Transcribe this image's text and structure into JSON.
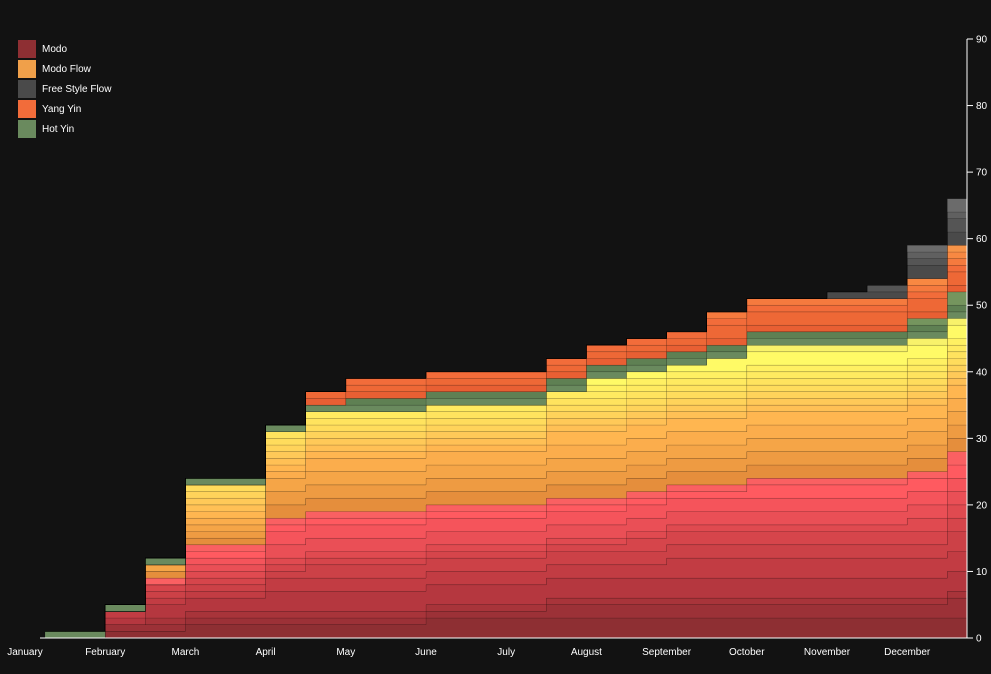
{
  "chart_data": {
    "type": "area",
    "stacked": true,
    "step": true,
    "title": "",
    "xlabel": "",
    "ylabel": "",
    "ylim": [
      0,
      90
    ],
    "y_ticks": [
      0,
      10,
      20,
      30,
      40,
      50,
      60,
      70,
      80,
      90
    ],
    "y_axis_position": "right",
    "grid": false,
    "legend_position": "top-left",
    "x_tick_labels": [
      "January",
      "February",
      "March",
      "April",
      "May",
      "June",
      "July",
      "August",
      "September",
      "October",
      "November",
      "December"
    ],
    "x": [
      0,
      0.5,
      1,
      1.5,
      2,
      2.5,
      3,
      3.5,
      4,
      4.5,
      5,
      5.5,
      6,
      6.5,
      7,
      7.5,
      8,
      8.5,
      9,
      9.5,
      10,
      10.5,
      11,
      11.5
    ],
    "legend": [
      {
        "name": "Modo",
        "color": "#8e2f33"
      },
      {
        "name": "Modo Flow",
        "color": "#f0a04a"
      },
      {
        "name": "Free Style Flow",
        "color": "#4a4a4a"
      },
      {
        "name": "Yang Yin",
        "color": "#f26c3a"
      },
      {
        "name": "Hot Yin",
        "color": "#6a8a5e"
      }
    ],
    "series": [
      {
        "values": [
          0,
          0,
          1,
          1,
          2,
          2,
          2,
          2,
          2,
          2,
          3,
          3,
          3,
          3,
          3,
          3,
          3,
          3,
          3,
          3,
          3,
          3,
          3,
          3
        ],
        "color": "#8e2f33"
      },
      {
        "values": [
          0,
          0,
          1,
          1,
          1,
          1,
          1,
          1,
          1,
          1,
          1,
          1,
          1,
          2,
          2,
          2,
          2,
          2,
          2,
          2,
          2,
          2,
          2,
          3
        ],
        "color": "#9c3137"
      },
      {
        "values": [
          0,
          0,
          0,
          1,
          1,
          1,
          1,
          1,
          1,
          1,
          1,
          1,
          1,
          1,
          1,
          1,
          1,
          1,
          1,
          1,
          1,
          1,
          1,
          1
        ],
        "color": "#a8343a"
      },
      {
        "values": [
          0,
          0,
          1,
          2,
          2,
          2,
          3,
          3,
          3,
          3,
          3,
          3,
          3,
          3,
          3,
          3,
          3,
          3,
          3,
          3,
          3,
          3,
          3,
          3
        ],
        "color": "#b5373f"
      },
      {
        "values": [
          0,
          0,
          1,
          1,
          1,
          1,
          2,
          2,
          2,
          2,
          2,
          2,
          2,
          2,
          2,
          2,
          3,
          3,
          3,
          3,
          3,
          3,
          3,
          3
        ],
        "color": "#c23c43"
      },
      {
        "values": [
          0,
          0,
          0,
          1,
          1,
          1,
          1,
          2,
          2,
          2,
          2,
          2,
          2,
          2,
          2,
          2,
          2,
          2,
          2,
          2,
          2,
          2,
          2,
          3
        ],
        "color": "#cc4147"
      },
      {
        "values": [
          0,
          0,
          0,
          1,
          1,
          1,
          1,
          1,
          1,
          1,
          1,
          1,
          1,
          1,
          1,
          2,
          2,
          2,
          2,
          2,
          2,
          2,
          2,
          2
        ],
        "color": "#d6454b"
      },
      {
        "values": [
          0,
          0,
          0,
          0,
          1,
          1,
          1,
          1,
          1,
          1,
          1,
          1,
          1,
          1,
          1,
          1,
          1,
          1,
          1,
          1,
          1,
          1,
          2,
          2
        ],
        "color": "#e04a50"
      },
      {
        "values": [
          0,
          0,
          0,
          0,
          1,
          1,
          2,
          2,
          2,
          2,
          2,
          2,
          2,
          2,
          2,
          2,
          2,
          2,
          2,
          2,
          2,
          2,
          2,
          2
        ],
        "color": "#ea4f56"
      },
      {
        "values": [
          0,
          0,
          0,
          0,
          1,
          1,
          2,
          2,
          2,
          2,
          2,
          2,
          2,
          2,
          2,
          2,
          2,
          2,
          2,
          2,
          2,
          2,
          2,
          2
        ],
        "color": "#f5545b"
      },
      {
        "values": [
          0,
          0,
          0,
          0,
          1,
          1,
          1,
          1,
          1,
          1,
          1,
          1,
          1,
          1,
          1,
          1,
          1,
          1,
          2,
          2,
          2,
          2,
          2,
          2
        ],
        "color": "#ff5a60"
      },
      {
        "values": [
          0,
          0,
          0,
          1,
          1,
          1,
          1,
          1,
          1,
          1,
          1,
          1,
          1,
          1,
          1,
          1,
          1,
          1,
          1,
          1,
          1,
          1,
          1,
          2
        ],
        "color": "#fa6062"
      },
      {
        "values": [
          0,
          0,
          0,
          1,
          1,
          1,
          2,
          2,
          2,
          2,
          2,
          2,
          2,
          2,
          2,
          2,
          2,
          2,
          2,
          2,
          2,
          2,
          2,
          2
        ],
        "color": "#e58e3c"
      },
      {
        "values": [
          0,
          0,
          0,
          0,
          1,
          1,
          2,
          2,
          2,
          2,
          2,
          2,
          2,
          2,
          2,
          2,
          2,
          2,
          2,
          2,
          2,
          2,
          2,
          2
        ],
        "color": "#ee9b42"
      },
      {
        "values": [
          0,
          0,
          0,
          1,
          1,
          1,
          2,
          2,
          2,
          2,
          2,
          2,
          2,
          2,
          2,
          2,
          2,
          2,
          2,
          2,
          2,
          2,
          2,
          2
        ],
        "color": "#f5a547"
      },
      {
        "values": [
          0,
          0,
          0,
          0,
          1,
          1,
          1,
          2,
          2,
          2,
          2,
          2,
          2,
          2,
          2,
          2,
          2,
          2,
          2,
          2,
          2,
          2,
          2,
          2
        ],
        "color": "#fbad4c"
      },
      {
        "values": [
          0,
          0,
          0,
          0,
          1,
          1,
          1,
          1,
          1,
          1,
          1,
          1,
          1,
          2,
          2,
          2,
          2,
          2,
          2,
          2,
          2,
          2,
          2,
          2
        ],
        "color": "#ffb650"
      },
      {
        "values": [
          0,
          0,
          0,
          0,
          1,
          1,
          1,
          1,
          1,
          1,
          1,
          1,
          1,
          1,
          1,
          1,
          1,
          1,
          1,
          1,
          1,
          1,
          1,
          1
        ],
        "color": "#ffc055"
      },
      {
        "values": [
          0,
          0,
          0,
          0,
          1,
          1,
          1,
          1,
          1,
          1,
          1,
          1,
          1,
          1,
          1,
          1,
          1,
          1,
          1,
          1,
          1,
          1,
          1,
          1
        ],
        "color": "#ffc958"
      },
      {
        "values": [
          0,
          0,
          0,
          0,
          1,
          1,
          1,
          1,
          1,
          1,
          1,
          1,
          1,
          1,
          1,
          1,
          1,
          1,
          1,
          1,
          1,
          1,
          1,
          1
        ],
        "color": "#ffd35a"
      },
      {
        "values": [
          0,
          0,
          0,
          0,
          1,
          1,
          1,
          1,
          1,
          1,
          1,
          1,
          1,
          1,
          1,
          1,
          1,
          1,
          1,
          1,
          1,
          1,
          1,
          1
        ],
        "color": "#ffdc5c"
      },
      {
        "values": [
          0,
          0,
          0,
          0,
          0,
          0,
          1,
          1,
          1,
          1,
          1,
          1,
          1,
          1,
          1,
          1,
          1,
          1,
          1,
          1,
          1,
          1,
          1,
          1
        ],
        "color": "#ffe35e"
      },
      {
        "values": [
          0,
          0,
          0,
          0,
          0,
          0,
          0,
          1,
          1,
          1,
          1,
          1,
          1,
          1,
          1,
          1,
          1,
          1,
          1,
          1,
          1,
          1,
          1,
          1
        ],
        "color": "#ffea60"
      },
      {
        "values": [
          0,
          0,
          0,
          0,
          0,
          0,
          0,
          0,
          0,
          0,
          0,
          0,
          0,
          0,
          1,
          1,
          1,
          1,
          1,
          1,
          1,
          1,
          1,
          1
        ],
        "color": "#fff062"
      },
      {
        "values": [
          0,
          0,
          0,
          0,
          0,
          0,
          0,
          0,
          0,
          0,
          0,
          0,
          0,
          0,
          1,
          1,
          1,
          2,
          2,
          2,
          2,
          2,
          2,
          2
        ],
        "color": "#fffa66"
      },
      {
        "values": [
          0,
          0,
          0,
          0,
          0,
          0,
          0,
          0,
          0,
          0,
          0,
          0,
          0,
          0,
          0,
          0,
          0,
          0,
          1,
          1,
          1,
          1,
          1,
          1
        ],
        "color": "#f8f26a"
      },
      {
        "values": [
          1,
          1,
          1,
          1,
          1,
          1,
          1,
          1,
          1,
          1,
          1,
          1,
          1,
          1,
          1,
          1,
          1,
          1,
          1,
          1,
          1,
          1,
          1,
          1
        ],
        "color": "#6a8a5e"
      },
      {
        "values": [
          0,
          0,
          0,
          0,
          0,
          0,
          0,
          0,
          1,
          1,
          1,
          1,
          1,
          1,
          1,
          1,
          1,
          1,
          1,
          1,
          1,
          1,
          1,
          1
        ],
        "color": "#5f8053"
      },
      {
        "values": [
          0,
          0,
          0,
          0,
          0,
          0,
          0,
          0,
          0,
          0,
          0,
          0,
          0,
          0,
          0,
          0,
          0,
          0,
          0,
          0,
          0,
          0,
          1,
          2
        ],
        "color": "#75955e"
      },
      {
        "values": [
          0,
          0,
          0,
          0,
          0,
          0,
          0,
          1,
          1,
          1,
          1,
          1,
          1,
          1,
          1,
          1,
          1,
          1,
          1,
          1,
          1,
          1,
          1,
          1
        ],
        "color": "#e85f33"
      },
      {
        "values": [
          0,
          0,
          0,
          0,
          0,
          0,
          0,
          1,
          1,
          1,
          1,
          1,
          1,
          1,
          1,
          1,
          1,
          2,
          2,
          2,
          2,
          2,
          2,
          2
        ],
        "color": "#ee6836"
      },
      {
        "values": [
          0,
          0,
          0,
          0,
          0,
          0,
          0,
          0,
          1,
          1,
          1,
          1,
          1,
          1,
          1,
          1,
          1,
          1,
          1,
          1,
          1,
          1,
          1,
          1
        ],
        "color": "#f26c3a"
      },
      {
        "values": [
          0,
          0,
          0,
          0,
          0,
          0,
          0,
          0,
          0,
          0,
          0,
          0,
          0,
          0,
          0,
          0,
          0,
          1,
          1,
          1,
          1,
          1,
          1,
          1
        ],
        "color": "#f57a3e"
      },
      {
        "values": [
          0,
          0,
          0,
          0,
          0,
          0,
          0,
          0,
          0,
          0,
          0,
          0,
          0,
          0,
          0,
          0,
          0,
          0,
          0,
          0,
          0,
          0,
          1,
          1
        ],
        "color": "#f88842"
      },
      {
        "values": [
          0,
          0,
          0,
          0,
          0,
          0,
          0,
          0,
          0,
          0,
          0,
          0,
          0,
          0,
          0,
          0,
          0,
          0,
          0,
          0,
          0,
          0,
          0,
          1
        ],
        "color": "#f89448"
      },
      {
        "values": [
          0,
          0,
          0,
          0,
          0,
          0,
          0,
          0,
          0,
          0,
          0,
          0,
          0,
          0,
          0,
          0,
          0,
          0,
          0,
          0,
          1,
          1,
          2,
          2
        ],
        "color": "#4a4a4a"
      },
      {
        "values": [
          0,
          0,
          0,
          0,
          0,
          0,
          0,
          0,
          0,
          0,
          0,
          0,
          0,
          0,
          0,
          0,
          0,
          0,
          0,
          0,
          0,
          1,
          1,
          2
        ],
        "color": "#555555"
      },
      {
        "values": [
          0,
          0,
          0,
          0,
          0,
          0,
          0,
          0,
          0,
          0,
          0,
          0,
          0,
          0,
          0,
          0,
          0,
          0,
          0,
          0,
          0,
          0,
          1,
          1
        ],
        "color": "#606060"
      },
      {
        "values": [
          0,
          0,
          0,
          0,
          0,
          0,
          0,
          0,
          0,
          0,
          0,
          0,
          0,
          0,
          0,
          0,
          0,
          0,
          0,
          0,
          0,
          0,
          1,
          2
        ],
        "color": "#6b6b6b"
      }
    ]
  }
}
